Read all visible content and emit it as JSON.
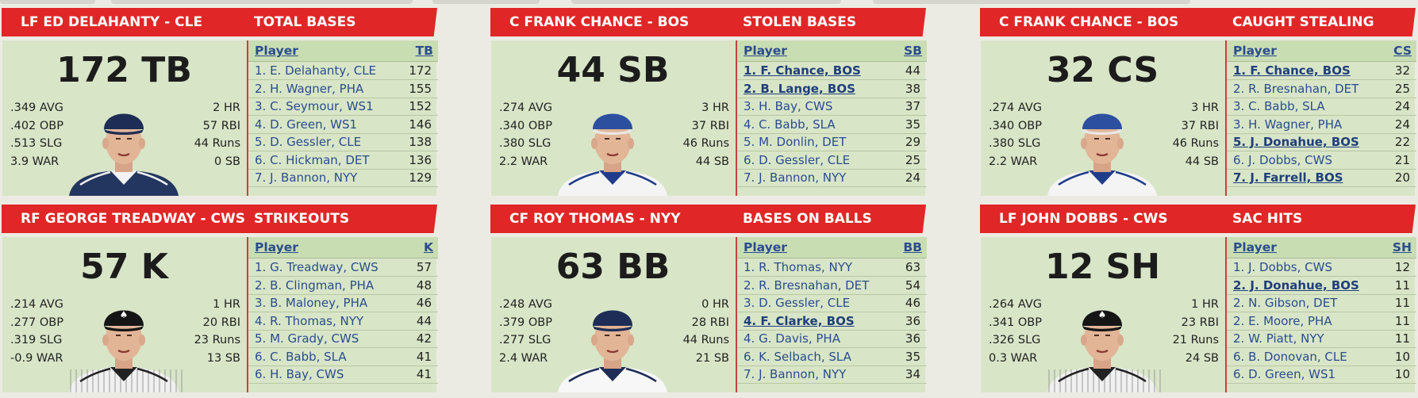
{
  "panels": [
    {
      "player_header": "LF ED DELAHANTY - CLE",
      "stat_title": "TOTAL BASES",
      "big_value": "172 TB",
      "left_stats": [
        ".349 AVG",
        ".402 OBP",
        ".513 SLG",
        "3.9 WAR"
      ],
      "right_stats": [
        "2 HR",
        "57 RBI",
        "44 Runs",
        "0 SB"
      ],
      "cap": "navy-cap",
      "jersey": "navy-jersey",
      "col_player": "Player",
      "col_stat": "TB",
      "rows": [
        {
          "name": "1. E. Delahanty, CLE",
          "value": "172"
        },
        {
          "name": "2. H. Wagner, PHA",
          "value": "155"
        },
        {
          "name": "3. C. Seymour, WS1",
          "value": "152"
        },
        {
          "name": "4. D. Green, WS1",
          "value": "146"
        },
        {
          "name": "5. D. Gessler, CLE",
          "value": "138"
        },
        {
          "name": "6. C. Hickman, DET",
          "value": "136"
        },
        {
          "name": "7. J. Bannon, NYY",
          "value": "129"
        }
      ]
    },
    {
      "player_header": "C FRANK CHANCE - BOS",
      "stat_title": "STOLEN BASES",
      "big_value": "44 SB",
      "left_stats": [
        ".274 AVG",
        ".340 OBP",
        ".380 SLG",
        "2.2 WAR"
      ],
      "right_stats": [
        "3 HR",
        "37 RBI",
        "46 Runs",
        "44 SB"
      ],
      "cap": "blue-cap",
      "jersey": "white-jersey",
      "col_player": "Player",
      "col_stat": "SB",
      "rows": [
        {
          "name": "1. F. Chance, BOS",
          "value": "44",
          "hl": true
        },
        {
          "name": "2. B. Lange, BOS",
          "value": "38",
          "hl": true
        },
        {
          "name": "3. H. Bay, CWS",
          "value": "37"
        },
        {
          "name": "4. C. Babb, SLA",
          "value": "35"
        },
        {
          "name": "5. M. Donlin, DET",
          "value": "29"
        },
        {
          "name": "6. D. Gessler, CLE",
          "value": "25"
        },
        {
          "name": "7. J. Bannon, NYY",
          "value": "24"
        }
      ]
    },
    {
      "player_header": "C FRANK CHANCE - BOS",
      "stat_title": "CAUGHT STEALING",
      "big_value": "32 CS",
      "left_stats": [
        ".274 AVG",
        ".340 OBP",
        ".380 SLG",
        "2.2 WAR"
      ],
      "right_stats": [
        "3 HR",
        "37 RBI",
        "46 Runs",
        "44 SB"
      ],
      "cap": "blue-cap",
      "jersey": "white-jersey",
      "col_player": "Player",
      "col_stat": "CS",
      "rows": [
        {
          "name": "1. F. Chance, BOS",
          "value": "32",
          "hl": true
        },
        {
          "name": "2. R. Bresnahan, DET",
          "value": "25"
        },
        {
          "name": "3. C. Babb, SLA",
          "value": "24"
        },
        {
          "name": "3. H. Wagner, PHA",
          "value": "24"
        },
        {
          "name": "5. J. Donahue, BOS",
          "value": "22",
          "hl": true
        },
        {
          "name": "6. J. Dobbs, CWS",
          "value": "21"
        },
        {
          "name": "7. J. Farrell, BOS",
          "value": "20",
          "hl": true
        }
      ]
    },
    {
      "player_header": "RF GEORGE TREADWAY - CWS",
      "stat_title": "STRIKEOUTS",
      "big_value": "57 K",
      "left_stats": [
        ".214 AVG",
        ".277 OBP",
        ".319 SLG",
        "-0.9 WAR"
      ],
      "right_stats": [
        "1 HR",
        "20 RBI",
        "23 Runs",
        "13 SB"
      ],
      "cap": "black-cap",
      "jersey": "pinstripe-jersey",
      "col_player": "Player",
      "col_stat": "K",
      "rows": [
        {
          "name": "1. G. Treadway, CWS",
          "value": "57"
        },
        {
          "name": "2. B. Clingman, PHA",
          "value": "48"
        },
        {
          "name": "3. B. Maloney, PHA",
          "value": "46"
        },
        {
          "name": "4. R. Thomas, NYY",
          "value": "44"
        },
        {
          "name": "5. M. Grady, CWS",
          "value": "42"
        },
        {
          "name": "6. C. Babb, SLA",
          "value": "41"
        },
        {
          "name": "6. H. Bay, CWS",
          "value": "41"
        }
      ]
    },
    {
      "player_header": "CF ROY THOMAS - NYY",
      "stat_title": "BASES ON BALLS",
      "big_value": "63 BB",
      "left_stats": [
        ".248 AVG",
        ".379 OBP",
        ".277 SLG",
        "2.4 WAR"
      ],
      "right_stats": [
        "0 HR",
        "28 RBI",
        "44 Runs",
        "21 SB"
      ],
      "cap": "navy-cap",
      "jersey": "white-navy-jersey",
      "col_player": "Player",
      "col_stat": "BB",
      "rows": [
        {
          "name": "1. R. Thomas, NYY",
          "value": "63"
        },
        {
          "name": "2. R. Bresnahan, DET",
          "value": "54"
        },
        {
          "name": "3. D. Gessler, CLE",
          "value": "46"
        },
        {
          "name": "4. F. Clarke, BOS",
          "value": "36",
          "hl": true
        },
        {
          "name": "4. G. Davis, PHA",
          "value": "36"
        },
        {
          "name": "6. K. Selbach, SLA",
          "value": "35"
        },
        {
          "name": "7. J. Bannon, NYY",
          "value": "34"
        }
      ]
    },
    {
      "player_header": "LF JOHN DOBBS - CWS",
      "stat_title": "SAC HITS",
      "big_value": "12 SH",
      "left_stats": [
        ".264 AVG",
        ".341 OBP",
        ".326 SLG",
        "0.3 WAR"
      ],
      "right_stats": [
        "1 HR",
        "23 RBI",
        "21 Runs",
        "24 SB"
      ],
      "cap": "black-cap",
      "jersey": "pinstripe-jersey",
      "col_player": "Player",
      "col_stat": "SH",
      "rows": [
        {
          "name": "1. J. Dobbs, CWS",
          "value": "12"
        },
        {
          "name": "2. J. Donahue, BOS",
          "value": "11",
          "hl": true
        },
        {
          "name": "2. N. Gibson, DET",
          "value": "11"
        },
        {
          "name": "2. E. Moore, PHA",
          "value": "11"
        },
        {
          "name": "2. W. Piatt, NYY",
          "value": "11"
        },
        {
          "name": "6. B. Donovan, CLE",
          "value": "10"
        },
        {
          "name": "6. D. Green, WS1",
          "value": "10"
        }
      ]
    }
  ],
  "colors": {
    "header_red": "#e02626",
    "panel_green": "#d8e5c7",
    "table_header_green": "#c9ddb3",
    "link_blue": "#2a4d8e"
  }
}
